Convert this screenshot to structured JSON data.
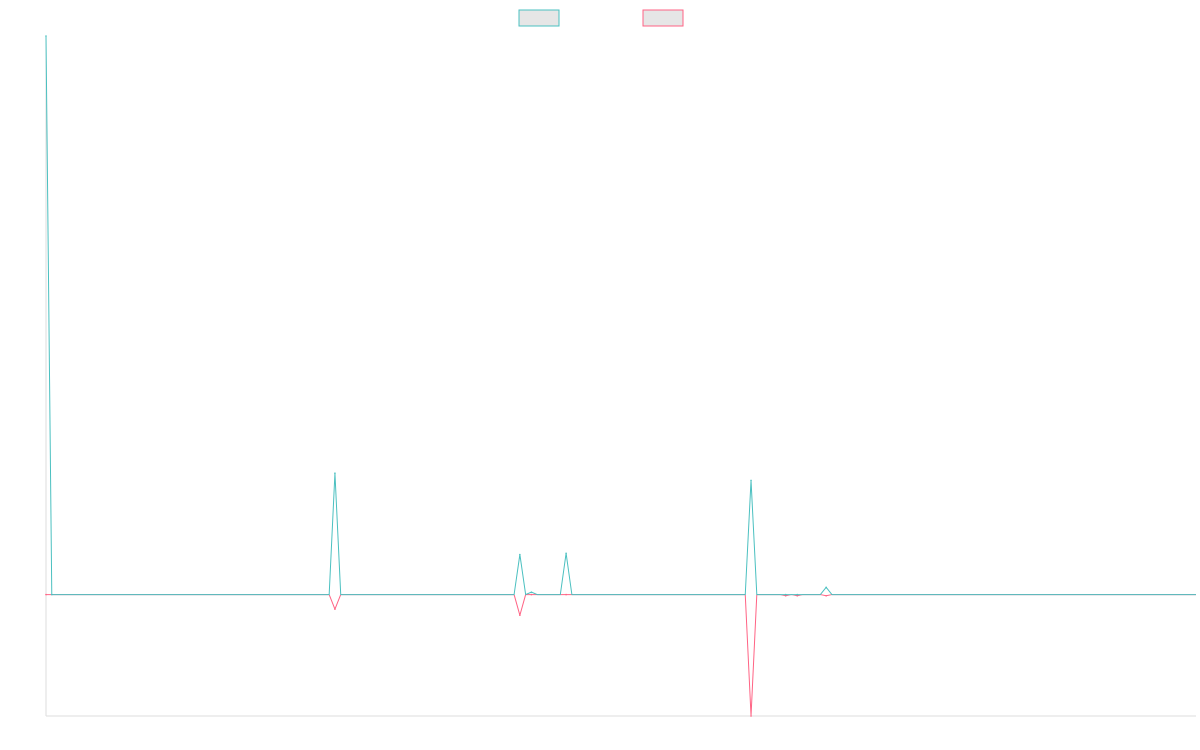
{
  "chart_data": {
    "type": "line",
    "title": "",
    "xlabel": "",
    "ylabel": "",
    "x_count": 200,
    "ylim": [
      -100,
      460
    ],
    "grid": false,
    "legend": {
      "placement": "top-center",
      "entries": [
        {
          "name": "",
          "color": "#4bc0c0"
        },
        {
          "name": "",
          "color": "#ff6384"
        }
      ]
    },
    "series": [
      {
        "name": "",
        "color": "#4bc0c0",
        "fill": "rgba(220,220,220,0.0)",
        "points": [
          [
            0,
            460
          ],
          [
            1,
            0
          ],
          [
            50,
            100
          ],
          [
            82,
            33
          ],
          [
            84,
            2
          ],
          [
            90,
            34
          ],
          [
            122,
            94
          ],
          [
            128,
            0
          ],
          [
            130,
            0
          ],
          [
            135,
            6
          ]
        ]
      },
      {
        "name": "",
        "color": "#ff6384",
        "points": [
          [
            0,
            0
          ],
          [
            50,
            -12
          ],
          [
            82,
            -17
          ],
          [
            84,
            0
          ],
          [
            90,
            0
          ],
          [
            122,
            -100
          ],
          [
            128,
            -1
          ],
          [
            130,
            -1
          ],
          [
            135,
            -1
          ]
        ]
      }
    ]
  }
}
